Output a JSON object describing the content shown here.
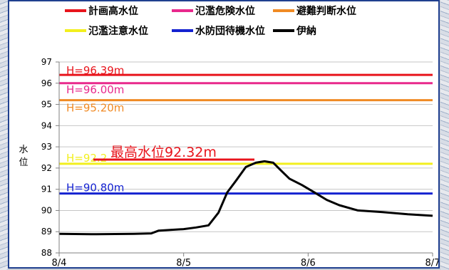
{
  "chart_data": {
    "type": "line",
    "ylabel": "水位",
    "ylim": [
      88,
      97
    ],
    "yticks": [
      88,
      89,
      90,
      91,
      92,
      93,
      94,
      95,
      96,
      97
    ],
    "xticks": [
      "8/4",
      "8/5",
      "8/6",
      "8/7"
    ],
    "grid": true,
    "legend": {
      "placement": "top",
      "rows": [
        [
          {
            "name": "計画高水位",
            "color": "#e8141c"
          },
          {
            "name": "氾濫危険水位",
            "color": "#e8288c"
          },
          {
            "name": "避難判断水位",
            "color": "#f08a24"
          }
        ],
        [
          {
            "name": "氾濫注意水位",
            "color": "#f2ef1e"
          },
          {
            "name": "水防団待機水位",
            "color": "#1422d0"
          },
          {
            "name": "伊納",
            "color": "#000000"
          }
        ]
      ]
    },
    "thresholds": [
      {
        "name": "計画高水位",
        "value": 96.39,
        "label": "H=96.39m",
        "color": "#e8141c"
      },
      {
        "name": "氾濫危険水位",
        "value": 96.0,
        "label": "H=96.00m",
        "color": "#e8288c"
      },
      {
        "name": "避難判断水位",
        "value": 95.2,
        "label": "H=95.20m",
        "color": "#f08a24"
      },
      {
        "name": "氾濫注意水位",
        "value": 92.2,
        "label": "H=92.2",
        "color": "#f2ef1e"
      },
      {
        "name": "水防団待機水位",
        "value": 90.8,
        "label": "H=90.80m",
        "color": "#1422d0"
      }
    ],
    "series": [
      {
        "name": "伊納",
        "color": "#000000",
        "x": [
          0.0,
          0.3,
          0.6,
          0.74,
          0.8,
          1.0,
          1.1,
          1.2,
          1.28,
          1.35,
          1.42,
          1.5,
          1.58,
          1.65,
          1.72,
          1.78,
          1.85,
          1.95,
          2.05,
          2.15,
          2.25,
          2.4,
          2.6,
          2.8,
          3.0
        ],
        "y": [
          88.9,
          88.88,
          88.9,
          88.92,
          89.05,
          89.12,
          89.2,
          89.3,
          89.9,
          90.85,
          91.4,
          92.05,
          92.25,
          92.32,
          92.25,
          91.9,
          91.5,
          91.2,
          90.85,
          90.5,
          90.25,
          90.0,
          89.92,
          89.82,
          89.75
        ]
      }
    ],
    "annotations": [
      {
        "text": "最高水位92.32m",
        "color": "#e8141c",
        "x": 1.65,
        "y": 92.32
      }
    ]
  }
}
